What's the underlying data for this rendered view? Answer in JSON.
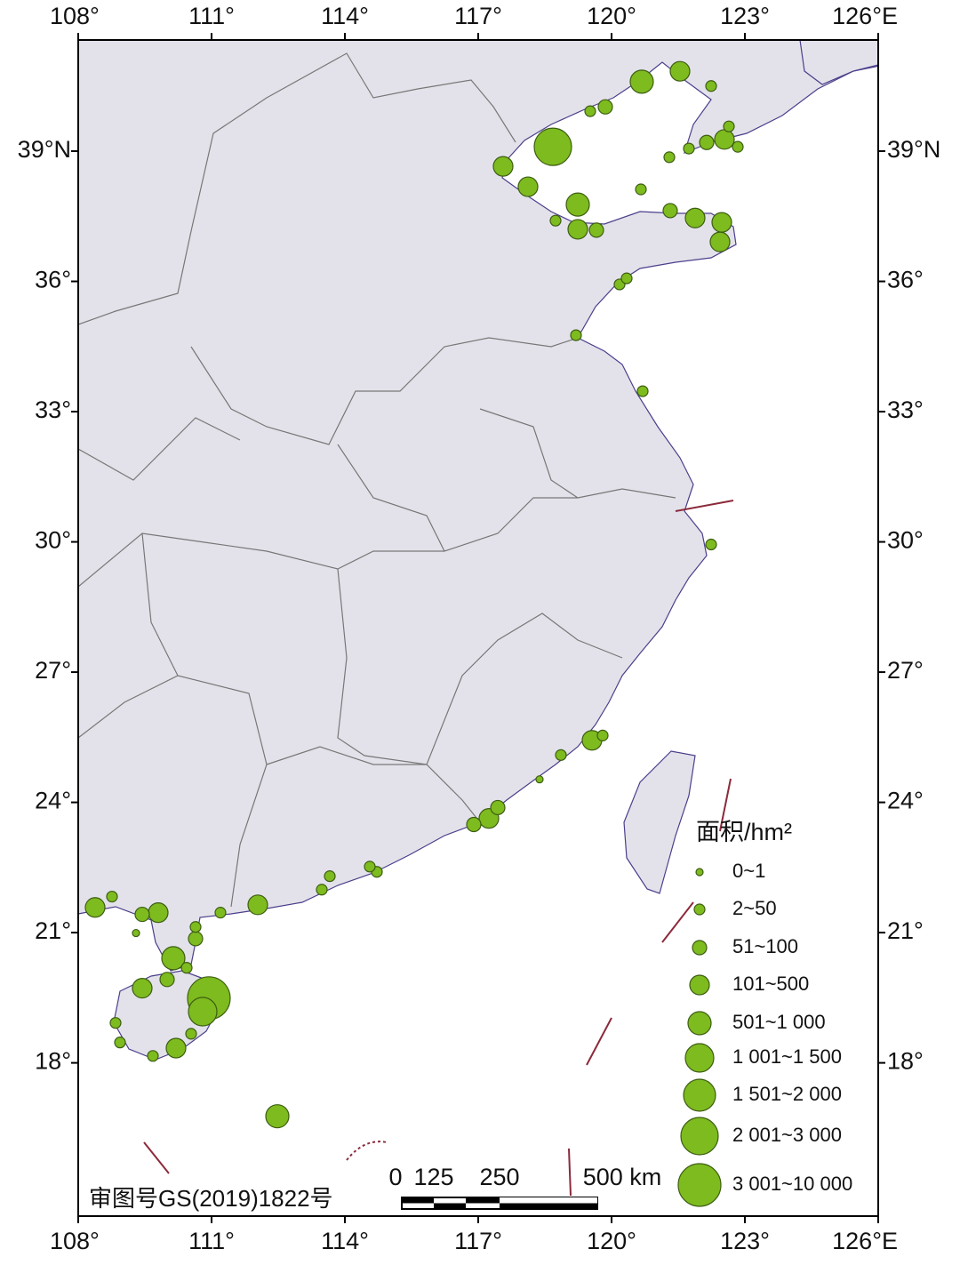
{
  "map": {
    "xlim": [
      108,
      126
    ],
    "ylim": [
      14.47,
      41.56
    ],
    "xticks": [
      {
        "value": 108,
        "label": "108°"
      },
      {
        "value": 111,
        "label": "111°"
      },
      {
        "value": 114,
        "label": "114°"
      },
      {
        "value": 117,
        "label": "117°"
      },
      {
        "value": 120,
        "label": "120°"
      },
      {
        "value": 123,
        "label": "123°"
      },
      {
        "value": 126,
        "label": "126°E"
      }
    ],
    "yticks": [
      {
        "value": 39,
        "label": "39°N"
      },
      {
        "value": 36,
        "label": "36°"
      },
      {
        "value": 33,
        "label": "33°"
      },
      {
        "value": 30,
        "label": "30°"
      },
      {
        "value": 27,
        "label": "27°"
      },
      {
        "value": 24,
        "label": "24°"
      },
      {
        "value": 21,
        "label": "21°"
      },
      {
        "value": 18,
        "label": "18°"
      }
    ],
    "legend": {
      "title": "面积/hm²",
      "classes": [
        {
          "label": "0~1",
          "points": [
            [
              118.38,
              24.53
            ],
            [
              109.3,
              20.99
            ]
          ]
        },
        {
          "label": "2~50",
          "points": [
            [
              122.24,
              40.5
            ],
            [
              119.52,
              39.92
            ],
            [
              118.74,
              37.4
            ],
            [
              120.66,
              38.12
            ],
            [
              121.74,
              39.06
            ],
            [
              121.3,
              38.86
            ],
            [
              122.84,
              39.1
            ],
            [
              122.64,
              39.57
            ],
            [
              120.18,
              35.93
            ],
            [
              120.34,
              36.07
            ],
            [
              119.2,
              34.76
            ],
            [
              120.7,
              33.47
            ],
            [
              122.24,
              29.94
            ],
            [
              119.8,
              25.54
            ],
            [
              118.86,
              25.09
            ],
            [
              114.72,
              22.4
            ],
            [
              114.56,
              22.52
            ],
            [
              113.66,
              22.3
            ],
            [
              113.48,
              21.99
            ],
            [
              111.2,
              21.46
            ],
            [
              110.64,
              21.13
            ],
            [
              108.76,
              21.83
            ],
            [
              110.44,
              20.19
            ],
            [
              108.84,
              18.92
            ],
            [
              108.94,
              18.47
            ],
            [
              110.54,
              18.67
            ],
            [
              109.68,
              18.16
            ]
          ]
        },
        {
          "label": "51~100",
          "points": [
            [
              119.86,
              40.02
            ],
            [
              119.66,
              37.18
            ],
            [
              121.32,
              37.63
            ],
            [
              122.14,
              39.2
            ],
            [
              117.44,
              23.88
            ],
            [
              116.9,
              23.49
            ],
            [
              110.64,
              20.86
            ],
            [
              109.44,
              21.42
            ],
            [
              110.0,
              19.92
            ]
          ]
        },
        {
          "label": "101~500",
          "points": [
            [
              121.54,
              40.84
            ],
            [
              117.56,
              38.65
            ],
            [
              118.12,
              38.18
            ],
            [
              119.24,
              37.2
            ],
            [
              121.88,
              37.46
            ],
            [
              122.48,
              37.36
            ],
            [
              122.44,
              36.91
            ],
            [
              122.54,
              39.27
            ],
            [
              119.56,
              25.43
            ],
            [
              117.24,
              23.63
            ],
            [
              112.04,
              21.64
            ],
            [
              109.8,
              21.46
            ],
            [
              108.38,
              21.58
            ],
            [
              109.44,
              19.72
            ],
            [
              110.2,
              18.34
            ]
          ]
        },
        {
          "label": "501~1 000",
          "points": [
            [
              120.68,
              40.6
            ],
            [
              119.24,
              37.77
            ],
            [
              110.14,
              20.41
            ],
            [
              112.48,
              16.77
            ]
          ]
        },
        {
          "label": "1 001~1 500",
          "points": [
            [
              110.8,
              19.18
            ]
          ]
        },
        {
          "label": "1 501~2 000",
          "points": []
        },
        {
          "label": "2 001~3 000",
          "points": [
            [
              118.68,
              39.1
            ]
          ]
        },
        {
          "label": "3 001~10 000",
          "points": [
            [
              110.94,
              19.49
            ]
          ]
        }
      ]
    },
    "scale_bar": {
      "labels": [
        "0",
        "125",
        "250",
        "500 km"
      ]
    },
    "approval_number": "审图号GS(2019)1822号"
  }
}
